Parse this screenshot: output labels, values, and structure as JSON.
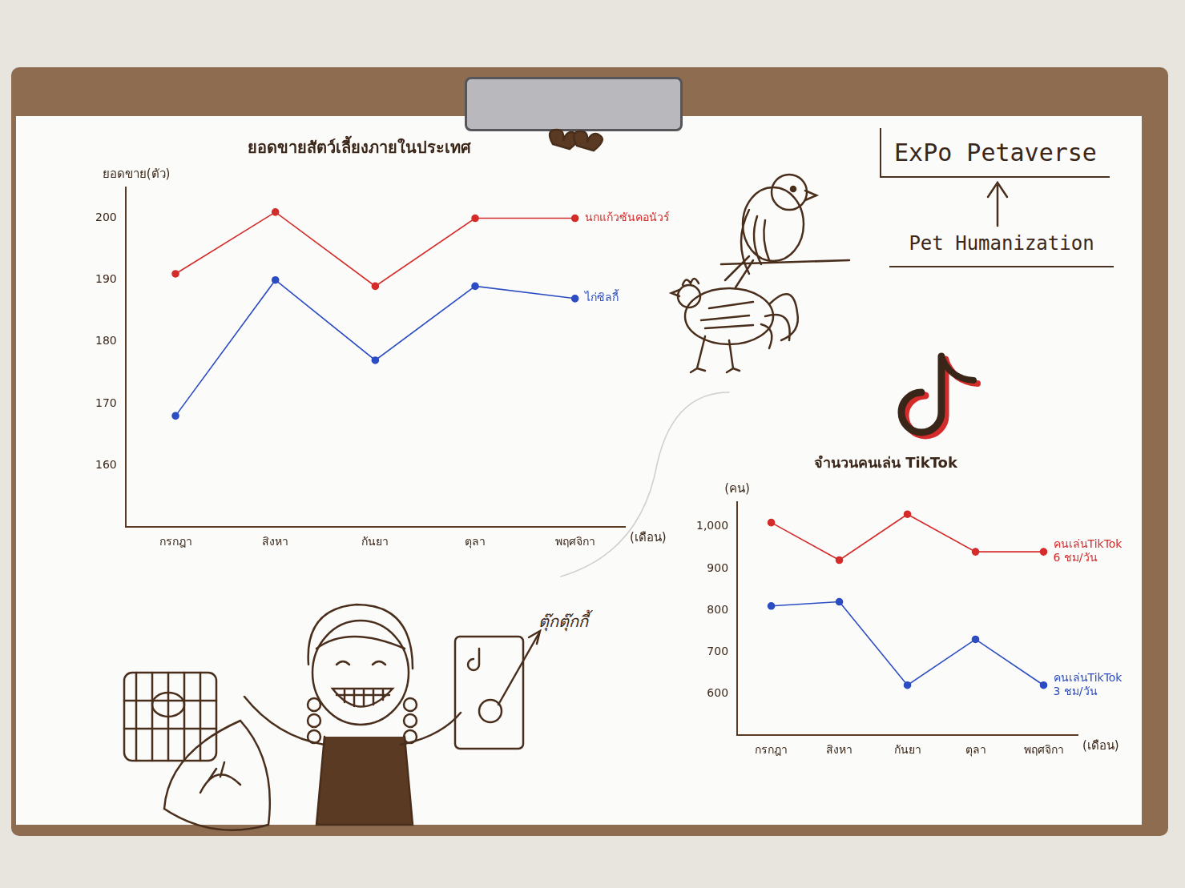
{
  "chart_data": [
    {
      "type": "line",
      "title": "ยอดขายสัตว์เลี้ยงภายในประเทศ",
      "y_label": "ยอดขาย(ตัว)",
      "x_label": "(เดือน)",
      "categories": [
        "กรกฎา",
        "สิงหา",
        "กันยา",
        "ตุลา",
        "พฤศจิกา"
      ],
      "series": [
        {
          "name": "นกแก้วซันคอนัวร์",
          "color": "#d42b2b",
          "marker": "circle",
          "values": [
            191,
            201,
            189,
            200,
            200
          ]
        },
        {
          "name": "ไก่ซิลกี้",
          "color": "#2b4cc2",
          "marker": "circle",
          "values": [
            168,
            190,
            177,
            189,
            187
          ]
        }
      ],
      "ylim": [
        150,
        205
      ],
      "yticks": [
        160,
        170,
        180,
        190,
        200
      ],
      "grid": false
    },
    {
      "type": "line",
      "title": "จำนวนคนเล่น TikTok",
      "y_label": "(คน)",
      "x_label": "(เดือน)",
      "categories": [
        "กรกฎา",
        "สิงหา",
        "กันยา",
        "ตุลา",
        "พฤศจิกา"
      ],
      "series": [
        {
          "name": "คนเล่นTikTok 6 ชม/วัน",
          "color": "#d42b2b",
          "marker": "circle",
          "values": [
            1010,
            920,
            1030,
            940,
            940
          ]
        },
        {
          "name": "คนเล่นTikTok 3 ชม/วัน",
          "color": "#2b4cc2",
          "marker": "circle",
          "values": [
            810,
            820,
            620,
            730,
            620
          ]
        }
      ],
      "ylim": [
        500,
        1060
      ],
      "yticks": [
        600,
        700,
        800,
        900,
        {
          "value": 1000,
          "label": "1,000"
        }
      ],
      "grid": false
    }
  ],
  "poster": {
    "heading": "ExPo Petaverse",
    "subheading": "Pet Humanization",
    "caption": "ตุ๊กตุ๊กกี้"
  }
}
